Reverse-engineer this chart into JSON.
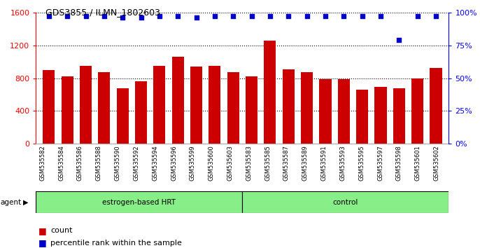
{
  "title": "GDS3855 / ILMN_1802603",
  "samples": [
    "GSM535582",
    "GSM535584",
    "GSM535586",
    "GSM535588",
    "GSM535590",
    "GSM535592",
    "GSM535594",
    "GSM535596",
    "GSM535599",
    "GSM535600",
    "GSM535603",
    "GSM535583",
    "GSM535585",
    "GSM535587",
    "GSM535589",
    "GSM535591",
    "GSM535593",
    "GSM535595",
    "GSM535597",
    "GSM535598",
    "GSM535601",
    "GSM535602"
  ],
  "counts": [
    900,
    820,
    950,
    870,
    680,
    760,
    950,
    1060,
    940,
    950,
    870,
    820,
    1260,
    910,
    870,
    790,
    790,
    660,
    690,
    680,
    800,
    920
  ],
  "percentile_ranks": [
    97,
    97,
    97,
    97,
    96,
    96,
    97,
    97,
    96,
    97,
    97,
    97,
    97,
    97,
    97,
    97,
    97,
    97,
    97,
    79,
    97,
    97
  ],
  "group1_count": 11,
  "group2_count": 11,
  "group1_label": "estrogen-based HRT",
  "group2_label": "control",
  "bar_color": "#cc0000",
  "dot_color": "#0000cc",
  "group_color": "#88ee88",
  "ylim_left": [
    0,
    1600
  ],
  "ylim_right": [
    0,
    100
  ],
  "yticks_left": [
    0,
    400,
    800,
    1200,
    1600
  ],
  "yticks_right": [
    0,
    25,
    50,
    75,
    100
  ],
  "legend_count_label": "count",
  "legend_pct_label": "percentile rank within the sample"
}
